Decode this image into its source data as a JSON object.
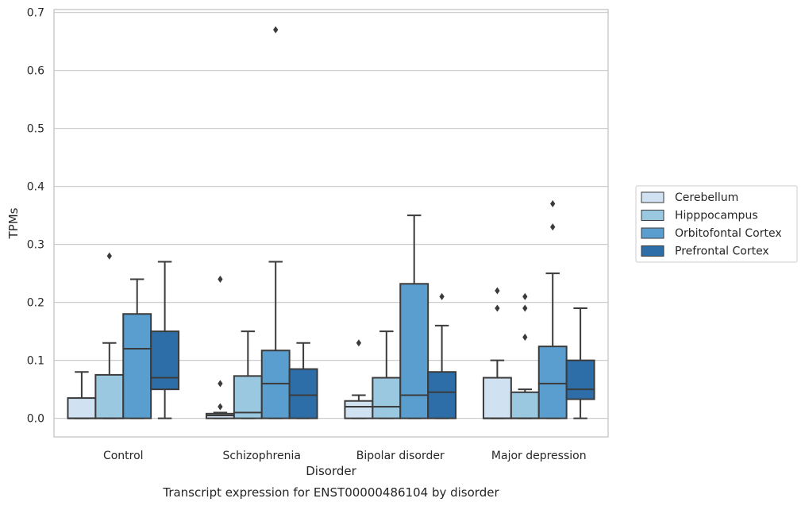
{
  "chart_data": {
    "type": "box",
    "title": "Transcript expression for ENST00000486104 by disorder",
    "xlabel": "Disorder",
    "ylabel": "TPMs",
    "ylim": [
      -0.032,
      0.705
    ],
    "yticks": [
      "0.0",
      "0.1",
      "0.2",
      "0.3",
      "0.4",
      "0.5",
      "0.6",
      "0.7"
    ],
    "grid": "horizontal",
    "legend_position": "right",
    "categories": [
      "Control",
      "Schizophrenia",
      "Bipolar disorder",
      "Major depression"
    ],
    "series": [
      {
        "name": "Cerebellum",
        "color": "#d0e1f2",
        "boxes": [
          {
            "q1": 0.0,
            "median": 0.0,
            "q3": 0.035,
            "whisker_low": 0.0,
            "whisker_high": 0.08,
            "outliers": []
          },
          {
            "q1": 0.0,
            "median": 0.005,
            "q3": 0.008,
            "whisker_low": 0.0,
            "whisker_high": 0.01,
            "outliers": [
              0.02,
              0.06,
              0.24
            ]
          },
          {
            "q1": 0.0,
            "median": 0.02,
            "q3": 0.03,
            "whisker_low": 0.0,
            "whisker_high": 0.04,
            "outliers": [
              0.13
            ]
          },
          {
            "q1": 0.0,
            "median": 0.0,
            "q3": 0.07,
            "whisker_low": 0.0,
            "whisker_high": 0.1,
            "outliers": [
              0.19,
              0.22
            ]
          }
        ]
      },
      {
        "name": "Hipppocampus",
        "color": "#9ac8e0",
        "boxes": [
          {
            "q1": 0.0,
            "median": 0.0,
            "q3": 0.075,
            "whisker_low": 0.0,
            "whisker_high": 0.13,
            "outliers": [
              0.28
            ]
          },
          {
            "q1": 0.0,
            "median": 0.01,
            "q3": 0.073,
            "whisker_low": 0.0,
            "whisker_high": 0.15,
            "outliers": []
          },
          {
            "q1": 0.0,
            "median": 0.02,
            "q3": 0.07,
            "whisker_low": 0.0,
            "whisker_high": 0.15,
            "outliers": []
          },
          {
            "q1": 0.0,
            "median": 0.0,
            "q3": 0.045,
            "whisker_low": 0.0,
            "whisker_high": 0.05,
            "outliers": [
              0.14,
              0.19,
              0.21
            ]
          }
        ]
      },
      {
        "name": "Orbitofontal Cortex",
        "color": "#5a9ecf",
        "boxes": [
          {
            "q1": 0.0,
            "median": 0.12,
            "q3": 0.18,
            "whisker_low": 0.0,
            "whisker_high": 0.24,
            "outliers": []
          },
          {
            "q1": 0.0,
            "median": 0.06,
            "q3": 0.117,
            "whisker_low": 0.0,
            "whisker_high": 0.27,
            "outliers": [
              0.67
            ]
          },
          {
            "q1": 0.0,
            "median": 0.04,
            "q3": 0.232,
            "whisker_low": 0.0,
            "whisker_high": 0.35,
            "outliers": []
          },
          {
            "q1": 0.0,
            "median": 0.06,
            "q3": 0.124,
            "whisker_low": 0.0,
            "whisker_high": 0.25,
            "outliers": [
              0.33,
              0.37
            ]
          }
        ]
      },
      {
        "name": "Prefrontal Cortex",
        "color": "#2d6ea8",
        "boxes": [
          {
            "q1": 0.05,
            "median": 0.07,
            "q3": 0.15,
            "whisker_low": 0.0,
            "whisker_high": 0.27,
            "outliers": []
          },
          {
            "q1": 0.0,
            "median": 0.04,
            "q3": 0.085,
            "whisker_low": 0.0,
            "whisker_high": 0.13,
            "outliers": []
          },
          {
            "q1": 0.0,
            "median": 0.045,
            "q3": 0.08,
            "whisker_low": 0.0,
            "whisker_high": 0.16,
            "outliers": [
              0.21
            ]
          },
          {
            "q1": 0.033,
            "median": 0.05,
            "q3": 0.1,
            "whisker_low": 0.0,
            "whisker_high": 0.19,
            "outliers": []
          }
        ]
      }
    ]
  }
}
